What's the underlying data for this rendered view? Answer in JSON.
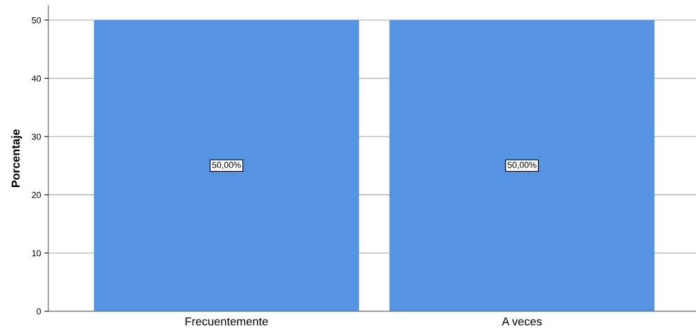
{
  "chart_data": {
    "type": "bar",
    "ylabel": "Porcentaje",
    "categories": [
      "Frecuentemente",
      "A veces"
    ],
    "values": [
      50,
      50
    ],
    "value_labels": [
      "50,00%",
      "50,00%"
    ],
    "color": "#5594e3",
    "ylim": [
      0,
      52.5
    ],
    "yticks": [
      0,
      10,
      20,
      30,
      40,
      50
    ],
    "grid": "y"
  }
}
